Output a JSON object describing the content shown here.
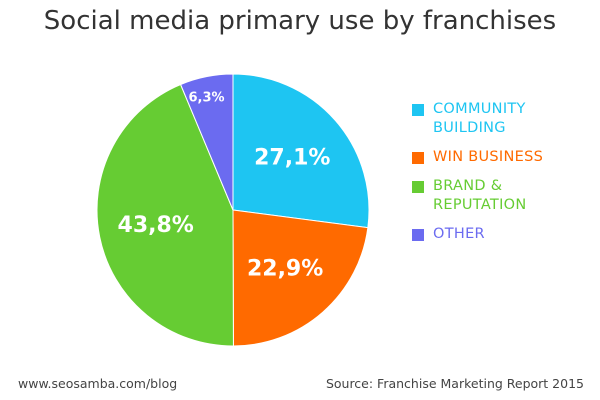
{
  "chart_data": {
    "type": "pie",
    "title": "Social media primary use by franchises",
    "slices": [
      {
        "label": "COMMUNITY BUILDING",
        "legend_lines": [
          "COMMUNITY",
          "BUILDING"
        ],
        "value": 27.1,
        "display": "27,1%",
        "color": "#1ec5f2"
      },
      {
        "label": "WIN BUSINESS",
        "legend_lines": [
          "WIN BUSINESS"
        ],
        "value": 22.9,
        "display": "22,9%",
        "color": "#ff6a00"
      },
      {
        "label": "BRAND & REPUTATION",
        "legend_lines": [
          "BRAND &",
          "REPUTATION"
        ],
        "value": 43.8,
        "display": "43,8%",
        "color": "#66cc33"
      },
      {
        "label": "OTHER",
        "legend_lines": [
          "OTHER"
        ],
        "value": 6.3,
        "display": "6,3%",
        "color": "#6b6bf0"
      }
    ],
    "start_angle_deg": 0,
    "direction": "clockwise",
    "legend_placement": "right"
  },
  "footer": {
    "left": "www.seosamba.com/blog",
    "right": "Source: Franchise Marketing Report 2015"
  }
}
